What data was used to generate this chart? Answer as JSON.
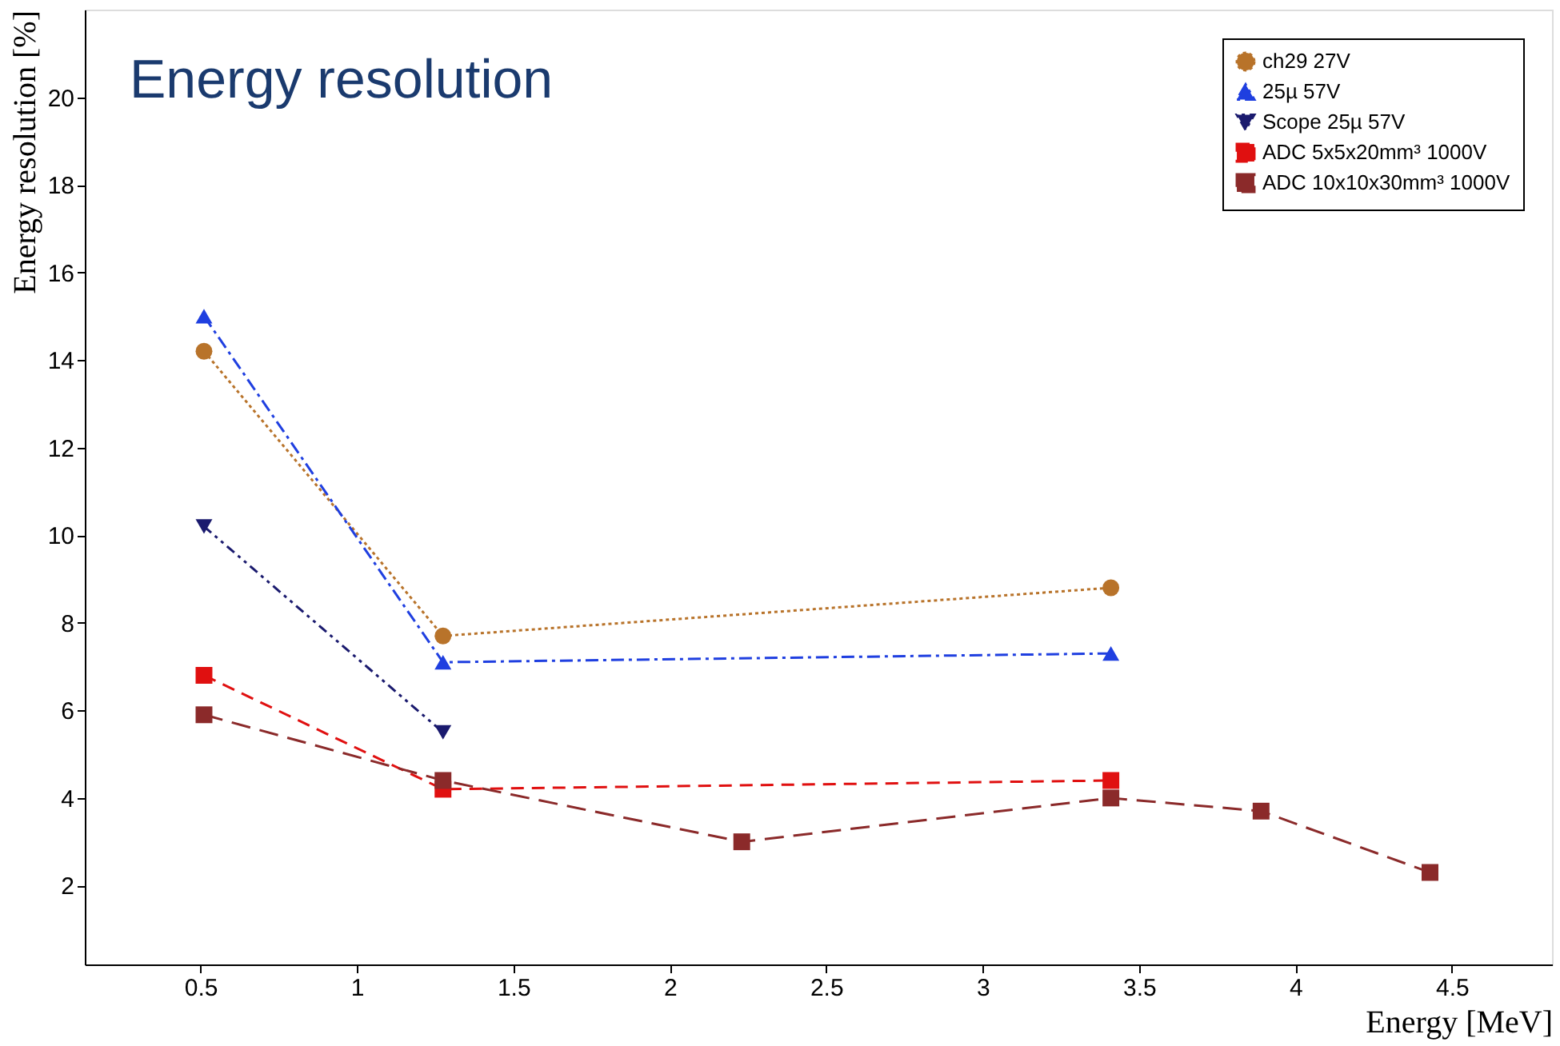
{
  "chart_data": {
    "type": "line",
    "title": "Energy resolution",
    "xlabel": "Energy [MeV]",
    "ylabel": "Energy resolution [%]",
    "xlim": [
      0.13,
      4.82
    ],
    "xticks": [
      0.5,
      {
        "value": 1,
        "label": "1"
      },
      1.5,
      {
        "value": 2,
        "label": "2"
      },
      2.5,
      {
        "value": 3,
        "label": "3"
      },
      3.5,
      {
        "value": 4,
        "label": "4"
      },
      4.5
    ],
    "ylim": [
      0.2,
      22
    ],
    "yticks": [
      2,
      4,
      6,
      8,
      10,
      12,
      14,
      16,
      18,
      20
    ],
    "grid": false,
    "legend": "top right",
    "series": [
      {
        "name": "ch29 27V",
        "color": "#b8732a",
        "x": [
          0.511,
          1.275,
          3.41
        ],
        "values": [
          14.2,
          7.7,
          8.8
        ],
        "marker": "circle",
        "line_style": "dotted"
      },
      {
        "name": "25µ 57V",
        "color": "#1f3fe0",
        "x": [
          0.511,
          1.275,
          3.41
        ],
        "values": [
          15.0,
          7.1,
          7.3
        ],
        "marker": "triangle-up",
        "line_style": "dashdot"
      },
      {
        "name": "Scope 25µ 57V",
        "color": "#1a1a6e",
        "x": [
          0.511,
          1.275
        ],
        "values": [
          10.2,
          5.5
        ],
        "marker": "triangle-down",
        "line_style": "dashdotdot"
      },
      {
        "name": "ADC 5x5x20mm³ 1000V",
        "color": "#e01010",
        "x": [
          0.511,
          1.275,
          3.41
        ],
        "values": [
          6.8,
          4.2,
          4.4
        ],
        "marker": "square",
        "line_style": "dashed"
      },
      {
        "name": "ADC 10x10x30mm³ 1000V",
        "color": "#8b2a2a",
        "x": [
          0.511,
          1.275,
          2.23,
          3.41,
          3.89,
          4.43
        ],
        "values": [
          5.9,
          4.4,
          3.0,
          4.0,
          3.7,
          2.3
        ],
        "marker": "square",
        "line_style": "longdash"
      }
    ]
  }
}
